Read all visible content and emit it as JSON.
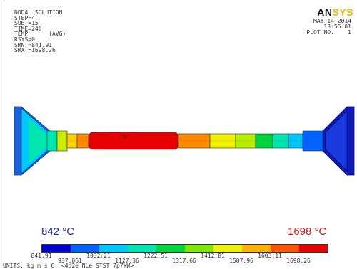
{
  "header": {
    "line1": "NODAL SOLUTION",
    "line2": "STEP=4",
    "line3": "SUB =15",
    "line4": "TIME=240",
    "line5": "TEMP      (AVG)",
    "line6": "RSYS=0",
    "line7": "SMN =841.91",
    "line8": "SMX =1698.26"
  },
  "logo": {
    "main": "AN",
    "suffix": "SYS"
  },
  "date_block": {
    "date": "MAY 14 2014",
    "time": "13:55:01",
    "plot": "PLOT NO.    1"
  },
  "labels": {
    "min": "842 °C",
    "max": "1698 °C"
  },
  "legend": {
    "colors": [
      "#0000d6",
      "#0063ff",
      "#00c6ff",
      "#00e6b0",
      "#00d43c",
      "#7de800",
      "#f0f000",
      "#ffb000",
      "#ff5500",
      "#e80000"
    ],
    "ticks_lower": [
      "841.91",
      "1032.21",
      "1222.51",
      "1412.81",
      "1603.11"
    ],
    "ticks_upper": [
      "937.061",
      "1127.36",
      "1317.66",
      "1507.96",
      "1698.26"
    ]
  },
  "units": "UNITS: kg m s C, <4d2e NLe STST 7p7kW>",
  "marker": "MX"
}
